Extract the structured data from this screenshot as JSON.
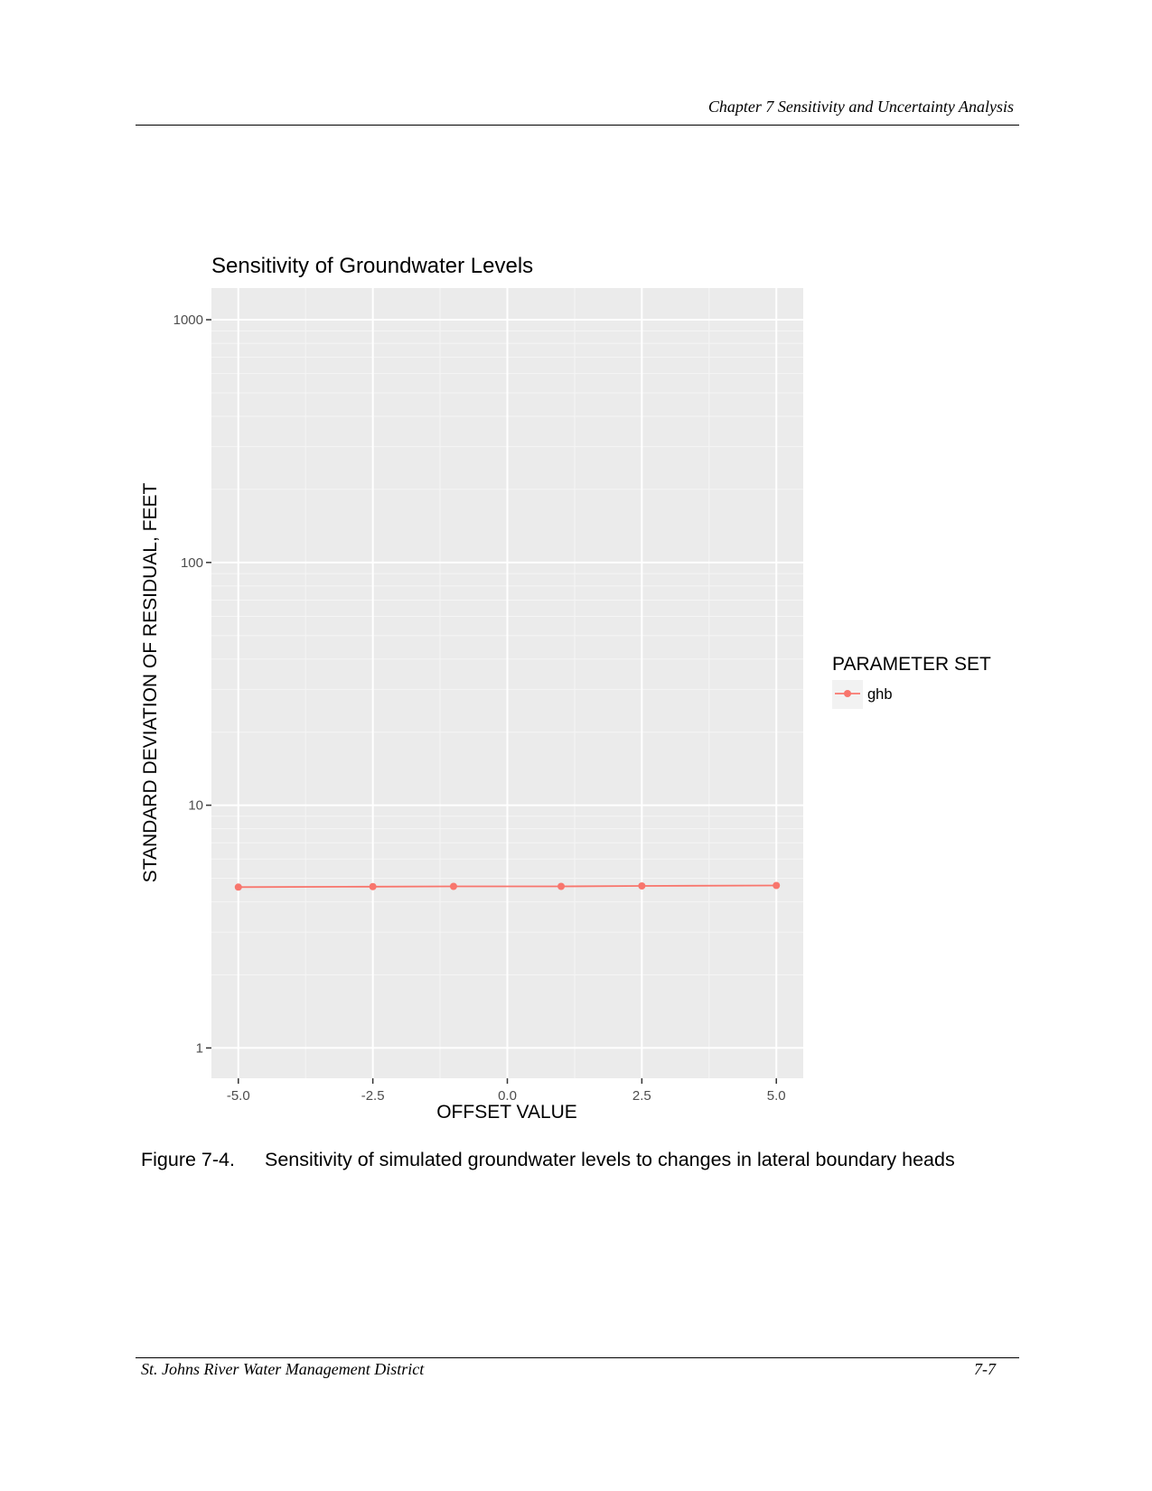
{
  "document": {
    "header_text": "Chapter 7  Sensitivity and Uncertainty Analysis",
    "footer_left": "St. Johns River Water Management District",
    "footer_right": "7-7"
  },
  "caption": {
    "number": "Figure 7-4.",
    "text": "Sensitivity of simulated groundwater levels to changes in lateral boundary heads"
  },
  "chart_data": {
    "type": "line",
    "title": "Sensitivity of Groundwater Levels",
    "xlabel": "OFFSET VALUE",
    "ylabel": "STANDARD DEVIATION OF RESIDUAL, FEET",
    "x_ticks": [
      "-5.0",
      "-2.5",
      "0.0",
      "2.5",
      "5.0"
    ],
    "y_ticks": [
      "1",
      "10",
      "100",
      "1000"
    ],
    "xlim": [
      -5.5,
      5.5
    ],
    "ylim": [
      0.75,
      1350
    ],
    "y_scale": "log",
    "grid": true,
    "legend_placement": "right",
    "legend_title": "PARAMETER SET",
    "series": [
      {
        "name": "ghb",
        "color": "#F8766D",
        "x": [
          -5.0,
          -2.5,
          -1.0,
          1.0,
          2.5,
          5.0
        ],
        "y": [
          4.6,
          4.62,
          4.63,
          4.63,
          4.65,
          4.67
        ]
      }
    ]
  }
}
